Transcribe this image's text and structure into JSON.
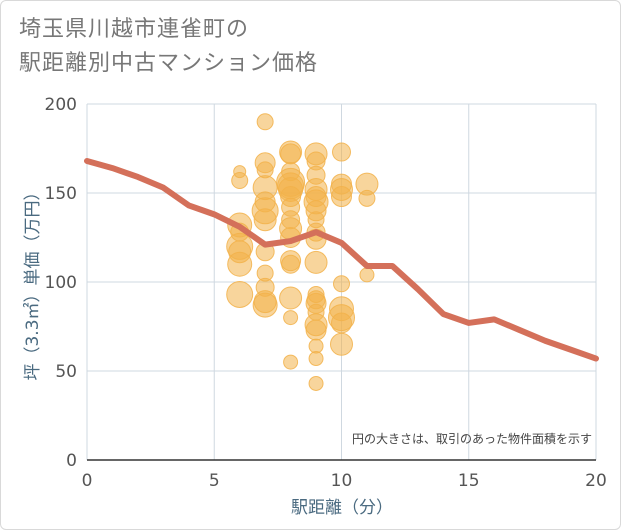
{
  "title_line1": "埼玉県川越市連雀町の",
  "title_line2": "駅距離別中古マンション価格",
  "chart_data": {
    "type": "scatter",
    "xlabel": "駅距離（分）",
    "ylabel": "坪（3.3㎡）単価（万円）",
    "xlim": [
      0,
      20
    ],
    "ylim": [
      0,
      200
    ],
    "xticks": [
      0,
      5,
      10,
      15,
      20
    ],
    "yticks": [
      0,
      50,
      100,
      150,
      200
    ],
    "grid": true,
    "note": "円の大きさは、取引のあった物件面積を示す",
    "colors": {
      "bubble": "#f2b24a",
      "line": "#d4705a",
      "grid": "#cfd8e0"
    },
    "bubbles": [
      {
        "x": 6,
        "y": 162,
        "s": 6
      },
      {
        "x": 6,
        "y": 157,
        "s": 8
      },
      {
        "x": 6,
        "y": 132,
        "s": 12
      },
      {
        "x": 6,
        "y": 128,
        "s": 9
      },
      {
        "x": 6,
        "y": 120,
        "s": 13
      },
      {
        "x": 6,
        "y": 117,
        "s": 11
      },
      {
        "x": 6,
        "y": 110,
        "s": 12
      },
      {
        "x": 6,
        "y": 93,
        "s": 13
      },
      {
        "x": 7,
        "y": 190,
        "s": 8
      },
      {
        "x": 7,
        "y": 167,
        "s": 10
      },
      {
        "x": 7,
        "y": 163,
        "s": 8
      },
      {
        "x": 7,
        "y": 153,
        "s": 12
      },
      {
        "x": 7,
        "y": 145,
        "s": 10
      },
      {
        "x": 7,
        "y": 140,
        "s": 13
      },
      {
        "x": 7,
        "y": 135,
        "s": 11
      },
      {
        "x": 7,
        "y": 117,
        "s": 9
      },
      {
        "x": 7,
        "y": 105,
        "s": 8
      },
      {
        "x": 7,
        "y": 97,
        "s": 9
      },
      {
        "x": 7,
        "y": 89,
        "s": 11
      },
      {
        "x": 7,
        "y": 87,
        "s": 12
      },
      {
        "x": 8,
        "y": 173,
        "s": 11
      },
      {
        "x": 8,
        "y": 172,
        "s": 10
      },
      {
        "x": 8,
        "y": 162,
        "s": 9
      },
      {
        "x": 8,
        "y": 156,
        "s": 14
      },
      {
        "x": 8,
        "y": 154,
        "s": 13
      },
      {
        "x": 8,
        "y": 152,
        "s": 12
      },
      {
        "x": 8,
        "y": 148,
        "s": 10
      },
      {
        "x": 8,
        "y": 142,
        "s": 9
      },
      {
        "x": 8,
        "y": 135,
        "s": 9
      },
      {
        "x": 8,
        "y": 130,
        "s": 11
      },
      {
        "x": 8,
        "y": 125,
        "s": 10
      },
      {
        "x": 8,
        "y": 112,
        "s": 10
      },
      {
        "x": 8,
        "y": 110,
        "s": 9
      },
      {
        "x": 8,
        "y": 91,
        "s": 11
      },
      {
        "x": 8,
        "y": 80,
        "s": 7
      },
      {
        "x": 8,
        "y": 55,
        "s": 7
      },
      {
        "x": 9,
        "y": 172,
        "s": 11
      },
      {
        "x": 9,
        "y": 168,
        "s": 9
      },
      {
        "x": 9,
        "y": 160,
        "s": 9
      },
      {
        "x": 9,
        "y": 152,
        "s": 11
      },
      {
        "x": 9,
        "y": 148,
        "s": 10
      },
      {
        "x": 9,
        "y": 145,
        "s": 12
      },
      {
        "x": 9,
        "y": 140,
        "s": 10
      },
      {
        "x": 9,
        "y": 135,
        "s": 8
      },
      {
        "x": 9,
        "y": 128,
        "s": 9
      },
      {
        "x": 9,
        "y": 124,
        "s": 10
      },
      {
        "x": 9,
        "y": 111,
        "s": 11
      },
      {
        "x": 9,
        "y": 93,
        "s": 8
      },
      {
        "x": 9,
        "y": 90,
        "s": 9
      },
      {
        "x": 9,
        "y": 88,
        "s": 10
      },
      {
        "x": 9,
        "y": 83,
        "s": 8
      },
      {
        "x": 9,
        "y": 76,
        "s": 11
      },
      {
        "x": 9,
        "y": 73,
        "s": 10
      },
      {
        "x": 9,
        "y": 64,
        "s": 7
      },
      {
        "x": 9,
        "y": 57,
        "s": 7
      },
      {
        "x": 9,
        "y": 43,
        "s": 7
      },
      {
        "x": 10,
        "y": 173,
        "s": 9
      },
      {
        "x": 10,
        "y": 155,
        "s": 10
      },
      {
        "x": 10,
        "y": 152,
        "s": 11
      },
      {
        "x": 10,
        "y": 148,
        "s": 10
      },
      {
        "x": 10,
        "y": 99,
        "s": 8
      },
      {
        "x": 10,
        "y": 85,
        "s": 12
      },
      {
        "x": 10,
        "y": 80,
        "s": 13
      },
      {
        "x": 10,
        "y": 77,
        "s": 10
      },
      {
        "x": 10,
        "y": 65,
        "s": 11
      },
      {
        "x": 11,
        "y": 155,
        "s": 11
      },
      {
        "x": 11,
        "y": 147,
        "s": 8
      },
      {
        "x": 11,
        "y": 104,
        "s": 7
      }
    ],
    "trend": {
      "x": [
        0,
        1,
        2,
        3,
        4,
        5,
        6,
        7,
        8,
        9,
        10,
        11,
        12,
        13,
        14,
        15,
        16,
        17,
        18,
        19,
        20
      ],
      "y": [
        168,
        164,
        159,
        153,
        143,
        138,
        131,
        121,
        123,
        128,
        122,
        109,
        109,
        96,
        82,
        77,
        79,
        73,
        67,
        62,
        57
      ]
    }
  }
}
